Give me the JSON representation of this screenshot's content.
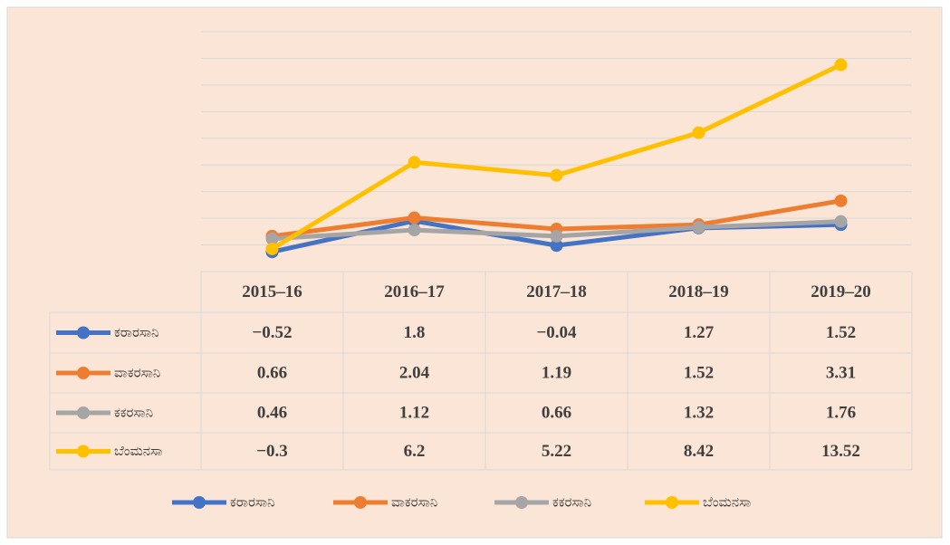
{
  "chart_data": {
    "type": "line",
    "categories": [
      "2015–16",
      "2016–17",
      "2017–18",
      "2018–19",
      "2019–20"
    ],
    "series": [
      {
        "name": "ಕರಾರಸಾನಿ",
        "color": "#4472c4",
        "values": [
          -0.52,
          1.8,
          -0.04,
          1.27,
          1.52
        ],
        "value_labels": [
          "−0.52",
          "1.8",
          "−0.04",
          "1.27",
          "1.52"
        ]
      },
      {
        "name": "ವಾಕರಸಾನಿ",
        "color": "#ed7d31",
        "values": [
          0.66,
          2.04,
          1.19,
          1.52,
          3.31
        ],
        "value_labels": [
          "0.66",
          "2.04",
          "1.19",
          "1.52",
          "3.31"
        ]
      },
      {
        "name": "ಕಕರಸಾನಿ",
        "color": "#a5a5a5",
        "values": [
          0.46,
          1.12,
          0.66,
          1.32,
          1.76
        ],
        "value_labels": [
          "0.46",
          "1.12",
          "0.66",
          "1.32",
          "1.76"
        ]
      },
      {
        "name": "ಬೆಂಮನಸಾ",
        "color": "#ffc000",
        "values": [
          -0.3,
          6.2,
          5.22,
          8.42,
          13.52
        ],
        "value_labels": [
          "−0.3",
          "6.2",
          "5.22",
          "8.42",
          "13.52"
        ]
      }
    ],
    "ylim": [
      -2,
      16
    ],
    "yticks": [
      -2,
      0,
      2,
      4,
      6,
      8,
      10,
      12,
      14,
      16
    ],
    "grid": true,
    "data_table": true,
    "legend": "bottom"
  }
}
